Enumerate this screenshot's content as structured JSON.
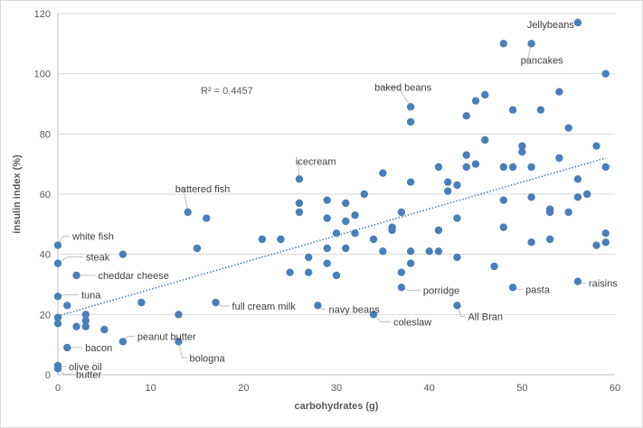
{
  "chart_data": {
    "type": "scatter",
    "xlabel": "carbohydrates (g)",
    "ylabel": "insulin index (%)",
    "xlim": [
      0,
      60
    ],
    "ylim": [
      0,
      120
    ],
    "xticks": [
      "0",
      "10",
      "20",
      "30",
      "40",
      "50",
      "60"
    ],
    "yticks": [
      "0",
      "20",
      "40",
      "60",
      "80",
      "100",
      "120"
    ],
    "grid": "horizontal",
    "marker_color": "#4a7ebb",
    "trendline": {
      "type": "linear",
      "label": "R² = 0.4457",
      "start": [
        0,
        19.5
      ],
      "end": [
        59,
        72
      ],
      "color": "#4a7ebb",
      "style": "dotted"
    },
    "points": [
      [
        0,
        43
      ],
      [
        0,
        37
      ],
      [
        0,
        26
      ],
      [
        0,
        19
      ],
      [
        0,
        17
      ],
      [
        0,
        3
      ],
      [
        0,
        2
      ],
      [
        1,
        23
      ],
      [
        1,
        9
      ],
      [
        2,
        33
      ],
      [
        2,
        16
      ],
      [
        3,
        20
      ],
      [
        3,
        18
      ],
      [
        3,
        16
      ],
      [
        5,
        15
      ],
      [
        7,
        40
      ],
      [
        7,
        11
      ],
      [
        9,
        24
      ],
      [
        13,
        20
      ],
      [
        13,
        11
      ],
      [
        14,
        54
      ],
      [
        15,
        42
      ],
      [
        16,
        52
      ],
      [
        17,
        24
      ],
      [
        22,
        45
      ],
      [
        24,
        45
      ],
      [
        25,
        34
      ],
      [
        26,
        65
      ],
      [
        26,
        57
      ],
      [
        26,
        54
      ],
      [
        27,
        39
      ],
      [
        27,
        34
      ],
      [
        28,
        23
      ],
      [
        29,
        58
      ],
      [
        29,
        52
      ],
      [
        29,
        42
      ],
      [
        29,
        37
      ],
      [
        30,
        47
      ],
      [
        30,
        33
      ],
      [
        31,
        57
      ],
      [
        31,
        51
      ],
      [
        31,
        42
      ],
      [
        32,
        53
      ],
      [
        32,
        47
      ],
      [
        33,
        60
      ],
      [
        34,
        45
      ],
      [
        34,
        20
      ],
      [
        35,
        67
      ],
      [
        35,
        41
      ],
      [
        36,
        49
      ],
      [
        36,
        48
      ],
      [
        37,
        54
      ],
      [
        37,
        34
      ],
      [
        37,
        29
      ],
      [
        38,
        89
      ],
      [
        38,
        84
      ],
      [
        38,
        64
      ],
      [
        38,
        41
      ],
      [
        38,
        37
      ],
      [
        40,
        41
      ],
      [
        41,
        69
      ],
      [
        41,
        48
      ],
      [
        41,
        41
      ],
      [
        42,
        64
      ],
      [
        42,
        61
      ],
      [
        43,
        63
      ],
      [
        43,
        52
      ],
      [
        43,
        39
      ],
      [
        43,
        23
      ],
      [
        44,
        86
      ],
      [
        44,
        73
      ],
      [
        44,
        69
      ],
      [
        45,
        91
      ],
      [
        45,
        70
      ],
      [
        46,
        93
      ],
      [
        46,
        78
      ],
      [
        47,
        36
      ],
      [
        48,
        110
      ],
      [
        48,
        69
      ],
      [
        48,
        58
      ],
      [
        48,
        49
      ],
      [
        49,
        88
      ],
      [
        49,
        69
      ],
      [
        49,
        29
      ],
      [
        50,
        76
      ],
      [
        50,
        74
      ],
      [
        51,
        110
      ],
      [
        51,
        69
      ],
      [
        51,
        59
      ],
      [
        51,
        44
      ],
      [
        52,
        88
      ],
      [
        53,
        55
      ],
      [
        53,
        54
      ],
      [
        53,
        45
      ],
      [
        54,
        94
      ],
      [
        54,
        72
      ],
      [
        55,
        82
      ],
      [
        55,
        54
      ],
      [
        56,
        117
      ],
      [
        56,
        65
      ],
      [
        56,
        59
      ],
      [
        56,
        31
      ],
      [
        57,
        60
      ],
      [
        58,
        76
      ],
      [
        58,
        43
      ],
      [
        59,
        100
      ],
      [
        59,
        69
      ],
      [
        59,
        47
      ],
      [
        59,
        44
      ]
    ],
    "annotations": [
      {
        "text": "Jellybeans",
        "x": 56,
        "y": 117
      },
      {
        "text": "pancakes",
        "x": 51,
        "y": 110
      },
      {
        "text": "baked beans",
        "x": 38,
        "y": 89
      },
      {
        "text": "icecream",
        "x": 26,
        "y": 65
      },
      {
        "text": "battered fish",
        "x": 14,
        "y": 54
      },
      {
        "text": "white fish",
        "x": 0,
        "y": 43
      },
      {
        "text": "steak",
        "x": 0,
        "y": 37
      },
      {
        "text": "cheddar cheese",
        "x": 2,
        "y": 33
      },
      {
        "text": "tuna",
        "x": 0,
        "y": 26
      },
      {
        "text": "full cream milk",
        "x": 17,
        "y": 24
      },
      {
        "text": "navy beans",
        "x": 28,
        "y": 23
      },
      {
        "text": "porridge",
        "x": 37,
        "y": 29
      },
      {
        "text": "coleslaw",
        "x": 34,
        "y": 20
      },
      {
        "text": "All Bran",
        "x": 43,
        "y": 23
      },
      {
        "text": "pasta",
        "x": 49,
        "y": 29
      },
      {
        "text": "raisins",
        "x": 56,
        "y": 31
      },
      {
        "text": "peanut butter",
        "x": 7,
        "y": 11
      },
      {
        "text": "bologna",
        "x": 13,
        "y": 11
      },
      {
        "text": "bacon",
        "x": 1,
        "y": 9
      },
      {
        "text": "olive oil",
        "x": 0,
        "y": 3
      },
      {
        "text": "butter",
        "x": 0,
        "y": 2
      }
    ]
  }
}
